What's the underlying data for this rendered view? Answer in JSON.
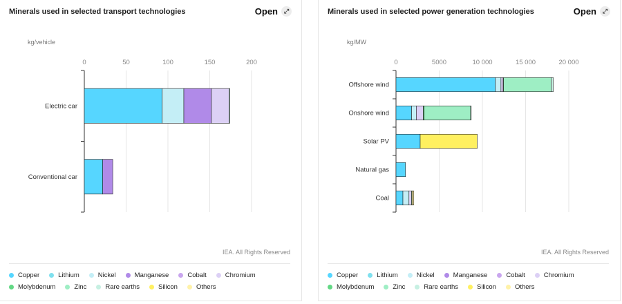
{
  "credit": "IEA. All Rights Reserved",
  "open_label": "Open",
  "legend": [
    {
      "name": "Copper",
      "color": "#56d6ff"
    },
    {
      "name": "Lithium",
      "color": "#7fe0ee"
    },
    {
      "name": "Nickel",
      "color": "#c4eef6"
    },
    {
      "name": "Manganese",
      "color": "#b08ae8"
    },
    {
      "name": "Cobalt",
      "color": "#c9a6ee"
    },
    {
      "name": "Chromium",
      "color": "#dcd0f5"
    },
    {
      "name": "Molybdenum",
      "color": "#62d884"
    },
    {
      "name": "Zinc",
      "color": "#9eeec4"
    },
    {
      "name": "Rare earths",
      "color": "#c6f0e2"
    },
    {
      "name": "Silicon",
      "color": "#fff060"
    },
    {
      "name": "Others",
      "color": "#fff2a8"
    }
  ],
  "chart_data": [
    {
      "type": "bar",
      "orientation": "horizontal",
      "stacked": true,
      "title": "Minerals used in selected transport technologies",
      "unit_label": "kg/vehicle",
      "categories": [
        "Electric car",
        "Conventional car"
      ],
      "xlim": [
        0,
        200
      ],
      "xticks": [
        "0",
        "50",
        "100",
        "150",
        "200"
      ],
      "grid": true,
      "series": [
        {
          "name": "Copper",
          "values": [
            93,
            22
          ]
        },
        {
          "name": "Lithium",
          "values": [
            0,
            0
          ]
        },
        {
          "name": "Nickel",
          "values": [
            26,
            0
          ]
        },
        {
          "name": "Manganese",
          "values": [
            33,
            12
          ]
        },
        {
          "name": "Cobalt",
          "values": [
            0,
            0
          ]
        },
        {
          "name": "Chromium",
          "values": [
            21,
            0
          ]
        },
        {
          "name": "Molybdenum",
          "values": [
            0,
            0
          ]
        },
        {
          "name": "Zinc",
          "values": [
            0,
            0
          ]
        },
        {
          "name": "Rare earths",
          "values": [
            1,
            0
          ]
        },
        {
          "name": "Silicon",
          "values": [
            0,
            0
          ]
        },
        {
          "name": "Others",
          "values": [
            0,
            0
          ]
        }
      ]
    },
    {
      "type": "bar",
      "orientation": "horizontal",
      "stacked": true,
      "title": "Minerals used in selected power generation technologies",
      "unit_label": "kg/MW",
      "categories": [
        "Offshore wind",
        "Onshore wind",
        "Solar PV",
        "Natural gas",
        "Coal"
      ],
      "xlim": [
        0,
        20000
      ],
      "xticks": [
        "0",
        "5000",
        "10 000",
        "15 000",
        "20 000"
      ],
      "grid": true,
      "series": [
        {
          "name": "Copper",
          "values": [
            11500,
            1800,
            2800,
            1100,
            800
          ]
        },
        {
          "name": "Lithium",
          "values": [
            0,
            0,
            0,
            0,
            0
          ]
        },
        {
          "name": "Nickel",
          "values": [
            650,
            550,
            0,
            0,
            700
          ]
        },
        {
          "name": "Manganese",
          "values": [
            0,
            0,
            0,
            0,
            0
          ]
        },
        {
          "name": "Cobalt",
          "values": [
            0,
            0,
            0,
            0,
            0
          ]
        },
        {
          "name": "Chromium",
          "values": [
            250,
            800,
            0,
            0,
            300
          ]
        },
        {
          "name": "Molybdenum",
          "values": [
            50,
            100,
            0,
            0,
            60
          ]
        },
        {
          "name": "Zinc",
          "values": [
            5500,
            5400,
            0,
            0,
            0
          ]
        },
        {
          "name": "Rare earths",
          "values": [
            250,
            15,
            0,
            0,
            0
          ]
        },
        {
          "name": "Silicon",
          "values": [
            0,
            0,
            6600,
            0,
            0
          ]
        },
        {
          "name": "Others",
          "values": [
            0,
            0,
            0,
            0,
            200
          ]
        }
      ]
    }
  ]
}
